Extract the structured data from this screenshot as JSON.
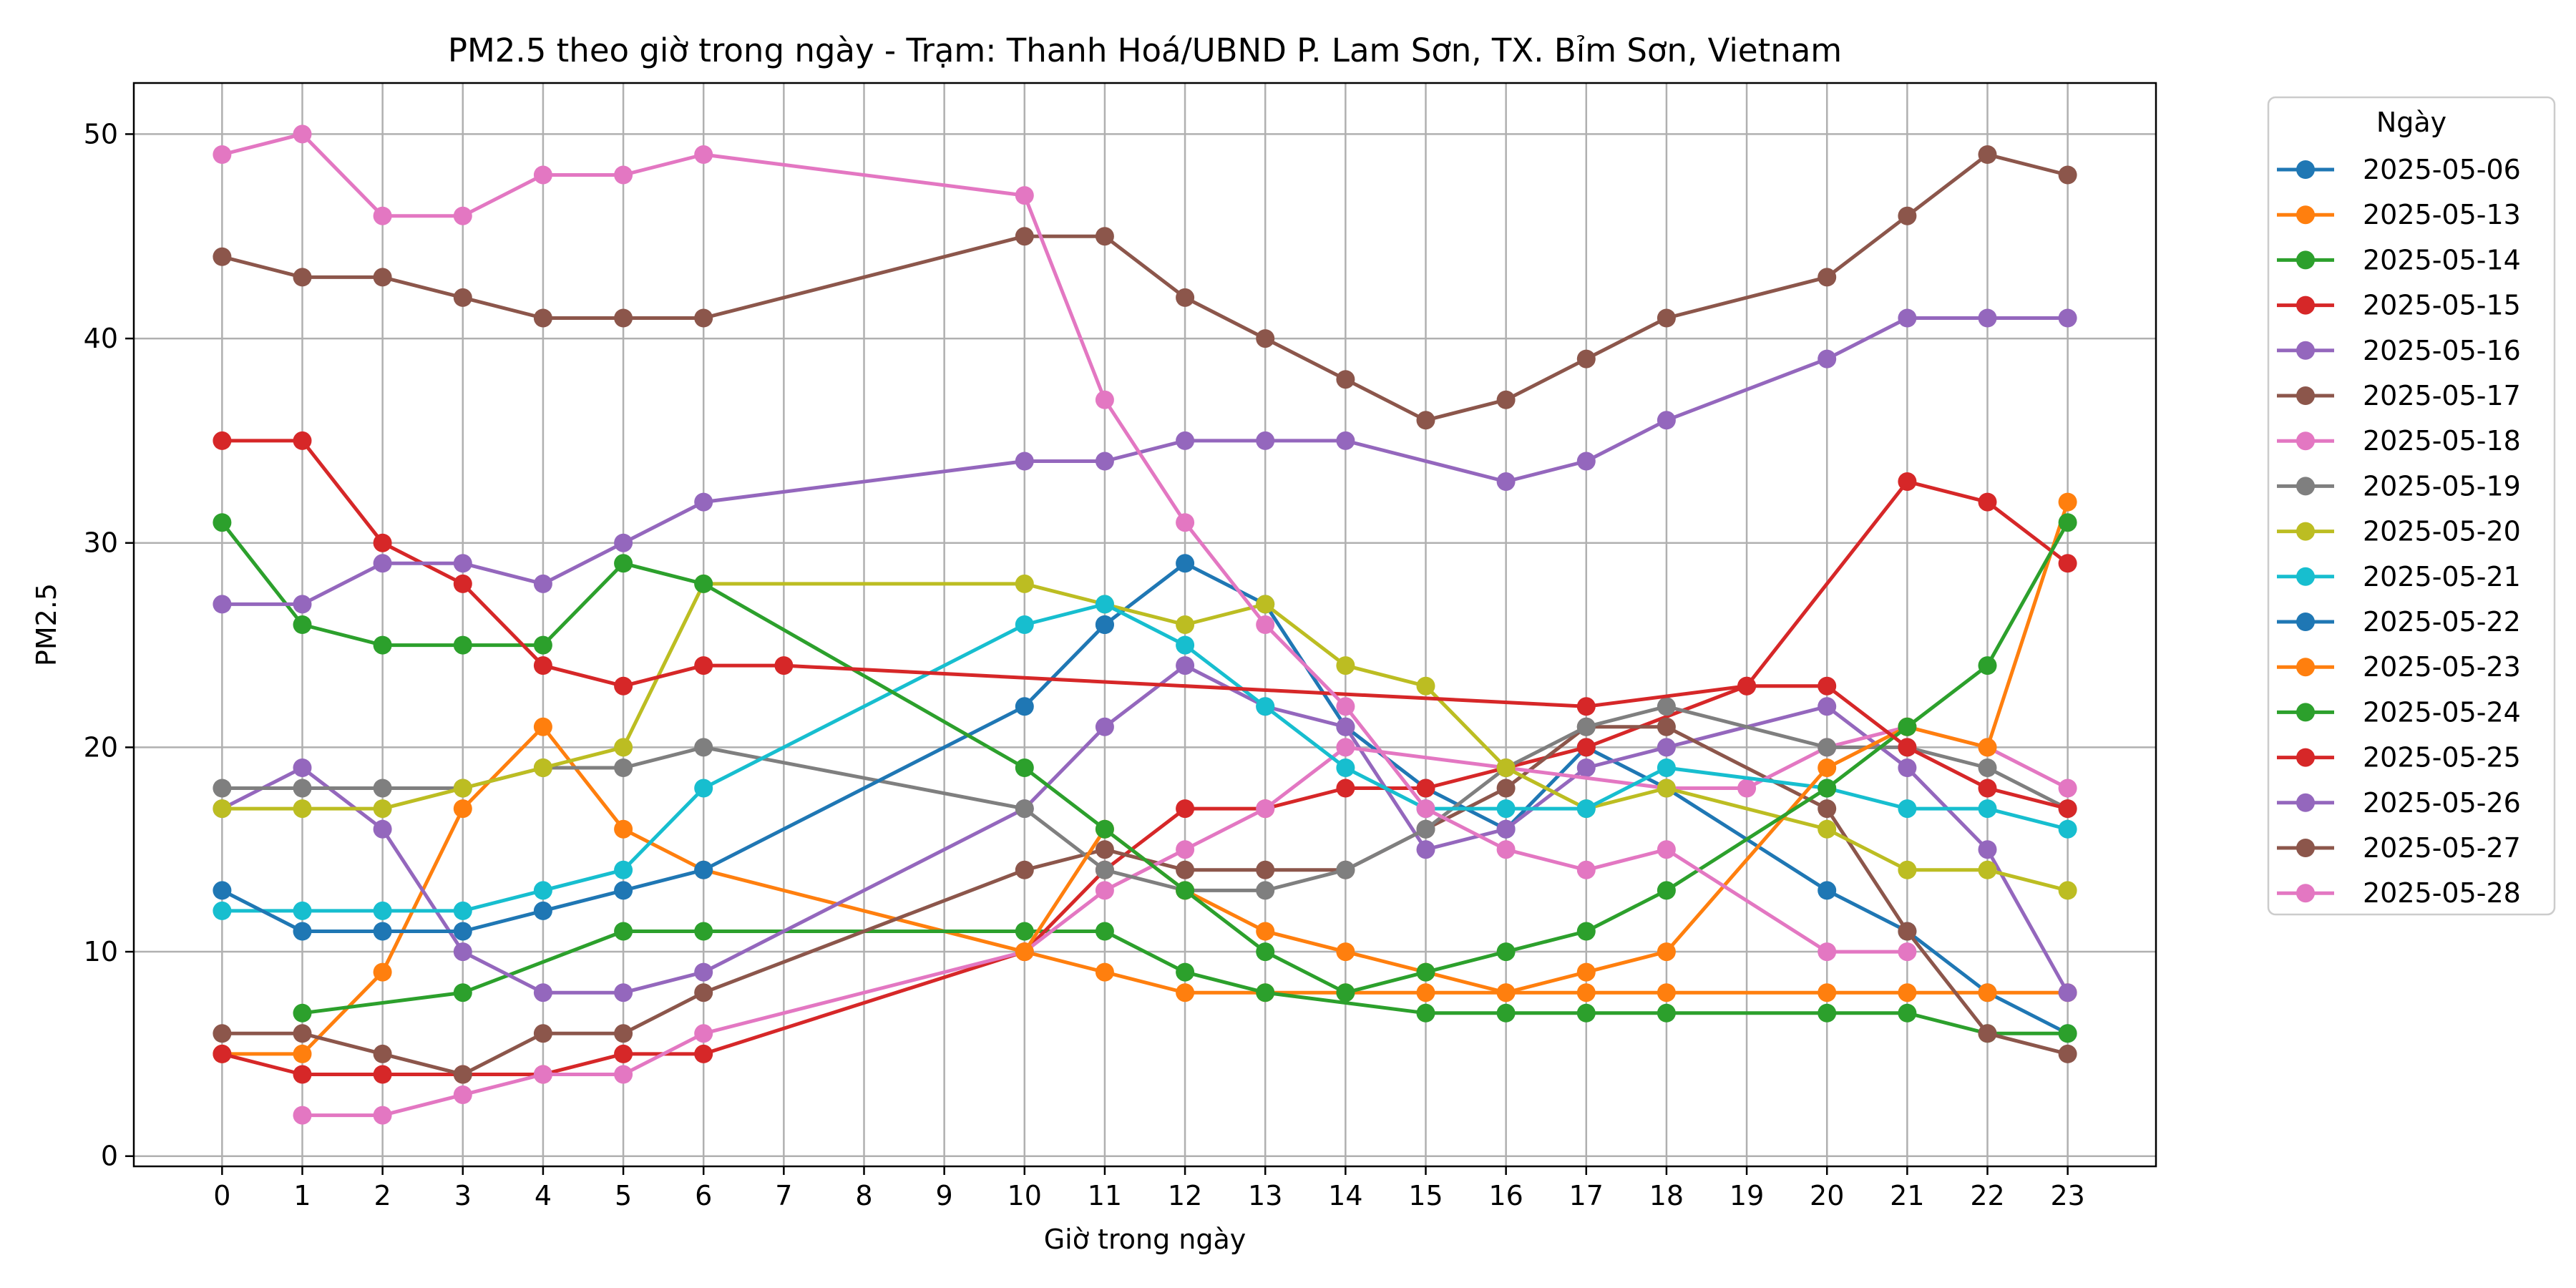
{
  "chart_data": {
    "type": "line",
    "title": "PM2.5 theo giờ trong ngày - Trạm: Thanh Hoá/UBND P. Lam Sơn, TX. Bỉm Sơn, Vietnam",
    "xlabel": "Giờ trong ngày",
    "ylabel": "PM2.5",
    "xlim": [
      -1.1,
      24.1
    ],
    "ylim": [
      -0.5,
      52.5
    ],
    "xticks": [
      0,
      1,
      2,
      3,
      4,
      5,
      6,
      7,
      8,
      9,
      10,
      11,
      12,
      13,
      14,
      15,
      16,
      17,
      18,
      19,
      20,
      21,
      22,
      23
    ],
    "yticks": [
      0,
      10,
      20,
      30,
      40,
      50
    ],
    "grid": true,
    "legend": {
      "title": "Ngày",
      "placement": "outside-right-top"
    },
    "series": [
      {
        "name": "2025-05-06",
        "color": "#1f77b4",
        "points": [
          [
            11,
            26
          ],
          [
            12,
            29
          ],
          [
            13,
            27
          ],
          [
            14,
            21
          ],
          [
            15,
            18
          ],
          [
            16,
            16
          ],
          [
            17,
            20
          ],
          [
            18,
            18
          ],
          [
            20,
            13
          ],
          [
            21,
            11
          ],
          [
            22,
            8
          ],
          [
            23,
            6
          ]
        ]
      },
      {
        "name": "2025-05-13",
        "color": "#ff7f0e",
        "points": [
          [
            0,
            5
          ],
          [
            1,
            5
          ],
          [
            2,
            9
          ],
          [
            3,
            17
          ],
          [
            4,
            21
          ],
          [
            5,
            16
          ],
          [
            6,
            14
          ],
          [
            10,
            10
          ],
          [
            11,
            9
          ],
          [
            12,
            8
          ],
          [
            13,
            8
          ],
          [
            14,
            8
          ],
          [
            15,
            8
          ],
          [
            16,
            8
          ],
          [
            17,
            8
          ],
          [
            18,
            8
          ],
          [
            20,
            8
          ],
          [
            21,
            8
          ],
          [
            22,
            8
          ],
          [
            23,
            8
          ]
        ]
      },
      {
        "name": "2025-05-14",
        "color": "#2ca02c",
        "points": [
          [
            1,
            7
          ],
          [
            3,
            8
          ],
          [
            5,
            11
          ],
          [
            6,
            11
          ],
          [
            10,
            11
          ],
          [
            11,
            11
          ],
          [
            12,
            9
          ],
          [
            13,
            8
          ],
          [
            15,
            7
          ],
          [
            16,
            7
          ],
          [
            17,
            7
          ],
          [
            18,
            7
          ],
          [
            20,
            7
          ],
          [
            21,
            7
          ],
          [
            22,
            6
          ],
          [
            23,
            6
          ]
        ]
      },
      {
        "name": "2025-05-15",
        "color": "#d62728",
        "points": [
          [
            0,
            5
          ],
          [
            1,
            4
          ],
          [
            2,
            4
          ],
          [
            3,
            4
          ],
          [
            4,
            4
          ],
          [
            5,
            5
          ],
          [
            6,
            5
          ],
          [
            10,
            10
          ],
          [
            11,
            14
          ],
          [
            12,
            17
          ],
          [
            13,
            17
          ],
          [
            14,
            18
          ],
          [
            15,
            18
          ],
          [
            17,
            20
          ],
          [
            19,
            23
          ],
          [
            21,
            33
          ],
          [
            22,
            32
          ],
          [
            23,
            29
          ]
        ]
      },
      {
        "name": "2025-05-16",
        "color": "#9467bd",
        "points": [
          [
            0,
            17
          ],
          [
            1,
            19
          ],
          [
            2,
            16
          ],
          [
            3,
            10
          ],
          [
            4,
            8
          ],
          [
            5,
            8
          ],
          [
            6,
            9
          ],
          [
            10,
            17
          ],
          [
            11,
            21
          ],
          [
            12,
            24
          ],
          [
            13,
            22
          ],
          [
            14,
            21
          ],
          [
            15,
            15
          ],
          [
            16,
            16
          ],
          [
            17,
            19
          ],
          [
            18,
            20
          ],
          [
            20,
            22
          ],
          [
            21,
            19
          ],
          [
            22,
            15
          ],
          [
            23,
            8
          ]
        ]
      },
      {
        "name": "2025-05-17",
        "color": "#8c564b",
        "points": [
          [
            0,
            6
          ],
          [
            1,
            6
          ],
          [
            2,
            5
          ],
          [
            3,
            4
          ],
          [
            4,
            6
          ],
          [
            5,
            6
          ],
          [
            6,
            8
          ],
          [
            10,
            14
          ],
          [
            11,
            15
          ],
          [
            12,
            14
          ],
          [
            13,
            14
          ],
          [
            14,
            14
          ],
          [
            15,
            16
          ],
          [
            16,
            18
          ],
          [
            17,
            21
          ],
          [
            18,
            21
          ],
          [
            20,
            17
          ],
          [
            21,
            11
          ],
          [
            22,
            6
          ],
          [
            23,
            5
          ]
        ]
      },
      {
        "name": "2025-05-18",
        "color": "#e377c2",
        "points": [
          [
            1,
            2
          ],
          [
            2,
            2
          ],
          [
            3,
            3
          ],
          [
            4,
            4
          ],
          [
            5,
            4
          ],
          [
            6,
            6
          ],
          [
            10,
            10
          ],
          [
            11,
            13
          ],
          [
            12,
            15
          ],
          [
            13,
            17
          ],
          [
            14,
            20
          ],
          [
            16,
            19
          ],
          [
            18,
            18
          ],
          [
            19,
            18
          ],
          [
            20,
            20
          ],
          [
            21,
            21
          ],
          [
            22,
            20
          ],
          [
            23,
            18
          ]
        ]
      },
      {
        "name": "2025-05-19",
        "color": "#7f7f7f",
        "points": [
          [
            0,
            18
          ],
          [
            1,
            18
          ],
          [
            2,
            18
          ],
          [
            3,
            18
          ],
          [
            4,
            19
          ],
          [
            5,
            19
          ],
          [
            6,
            20
          ],
          [
            10,
            17
          ],
          [
            11,
            14
          ],
          [
            12,
            13
          ],
          [
            13,
            13
          ],
          [
            14,
            14
          ],
          [
            15,
            16
          ],
          [
            16,
            19
          ],
          [
            17,
            21
          ],
          [
            18,
            22
          ],
          [
            20,
            20
          ],
          [
            21,
            20
          ],
          [
            22,
            19
          ],
          [
            23,
            17
          ]
        ]
      },
      {
        "name": "2025-05-20",
        "color": "#bcbd22",
        "points": [
          [
            0,
            17
          ],
          [
            1,
            17
          ],
          [
            2,
            17
          ],
          [
            3,
            18
          ],
          [
            4,
            19
          ],
          [
            5,
            20
          ],
          [
            6,
            28
          ],
          [
            10,
            28
          ],
          [
            11,
            27
          ],
          [
            12,
            26
          ],
          [
            13,
            27
          ],
          [
            14,
            24
          ],
          [
            15,
            23
          ],
          [
            16,
            19
          ],
          [
            17,
            17
          ],
          [
            18,
            18
          ],
          [
            20,
            16
          ],
          [
            21,
            14
          ],
          [
            22,
            14
          ],
          [
            23,
            13
          ]
        ]
      },
      {
        "name": "2025-05-21",
        "color": "#17becf",
        "points": [
          [
            0,
            12
          ],
          [
            1,
            12
          ],
          [
            2,
            12
          ],
          [
            3,
            12
          ],
          [
            4,
            13
          ],
          [
            5,
            14
          ],
          [
            6,
            18
          ],
          [
            10,
            26
          ],
          [
            11,
            27
          ],
          [
            12,
            25
          ],
          [
            13,
            22
          ],
          [
            14,
            19
          ],
          [
            15,
            17
          ],
          [
            16,
            17
          ],
          [
            17,
            17
          ],
          [
            18,
            19
          ],
          [
            20,
            18
          ],
          [
            21,
            17
          ],
          [
            22,
            17
          ],
          [
            23,
            16
          ]
        ]
      },
      {
        "name": "2025-05-22",
        "color": "#1f77b4",
        "points": [
          [
            0,
            13
          ],
          [
            1,
            11
          ],
          [
            2,
            11
          ],
          [
            3,
            11
          ],
          [
            4,
            12
          ],
          [
            5,
            13
          ],
          [
            6,
            14
          ],
          [
            10,
            22
          ],
          [
            11,
            26
          ]
        ]
      },
      {
        "name": "2025-05-23",
        "color": "#ff7f0e",
        "points": [
          [
            10,
            10
          ],
          [
            11,
            16
          ],
          [
            12,
            13
          ],
          [
            13,
            11
          ],
          [
            14,
            10
          ],
          [
            15,
            9
          ],
          [
            16,
            8
          ],
          [
            17,
            9
          ],
          [
            18,
            10
          ],
          [
            20,
            19
          ],
          [
            21,
            21
          ],
          [
            22,
            20
          ],
          [
            23,
            32
          ]
        ]
      },
      {
        "name": "2025-05-24",
        "color": "#2ca02c",
        "points": [
          [
            0,
            31
          ],
          [
            1,
            26
          ],
          [
            2,
            25
          ],
          [
            3,
            25
          ],
          [
            4,
            25
          ],
          [
            5,
            29
          ],
          [
            6,
            28
          ],
          [
            10,
            19
          ],
          [
            11,
            16
          ],
          [
            12,
            13
          ],
          [
            13,
            10
          ],
          [
            14,
            8
          ],
          [
            15,
            9
          ],
          [
            16,
            10
          ],
          [
            17,
            11
          ],
          [
            18,
            13
          ],
          [
            20,
            18
          ],
          [
            21,
            21
          ],
          [
            22,
            24
          ],
          [
            23,
            31
          ]
        ]
      },
      {
        "name": "2025-05-25",
        "color": "#d62728",
        "points": [
          [
            0,
            35
          ],
          [
            1,
            35
          ],
          [
            2,
            30
          ],
          [
            3,
            28
          ],
          [
            4,
            24
          ],
          [
            5,
            23
          ],
          [
            6,
            24
          ],
          [
            7,
            24
          ],
          [
            17,
            22
          ],
          [
            19,
            23
          ],
          [
            20,
            23
          ],
          [
            21,
            20
          ],
          [
            22,
            18
          ],
          [
            23,
            17
          ]
        ]
      },
      {
        "name": "2025-05-26",
        "color": "#9467bd",
        "points": [
          [
            0,
            27
          ],
          [
            1,
            27
          ],
          [
            2,
            29
          ],
          [
            3,
            29
          ],
          [
            4,
            28
          ],
          [
            5,
            30
          ],
          [
            6,
            32
          ],
          [
            10,
            34
          ],
          [
            11,
            34
          ],
          [
            12,
            35
          ],
          [
            13,
            35
          ],
          [
            14,
            35
          ],
          [
            16,
            33
          ],
          [
            17,
            34
          ],
          [
            18,
            36
          ],
          [
            20,
            39
          ],
          [
            21,
            41
          ],
          [
            22,
            41
          ],
          [
            23,
            41
          ]
        ]
      },
      {
        "name": "2025-05-27",
        "color": "#8c564b",
        "points": [
          [
            0,
            44
          ],
          [
            1,
            43
          ],
          [
            2,
            43
          ],
          [
            3,
            42
          ],
          [
            4,
            41
          ],
          [
            5,
            41
          ],
          [
            6,
            41
          ],
          [
            10,
            45
          ],
          [
            11,
            45
          ],
          [
            12,
            42
          ],
          [
            13,
            40
          ],
          [
            14,
            38
          ],
          [
            15,
            36
          ],
          [
            16,
            37
          ],
          [
            17,
            39
          ],
          [
            18,
            41
          ],
          [
            20,
            43
          ],
          [
            21,
            46
          ],
          [
            22,
            49
          ],
          [
            23,
            48
          ]
        ]
      },
      {
        "name": "2025-05-28",
        "color": "#e377c2",
        "points": [
          [
            0,
            49
          ],
          [
            1,
            50
          ],
          [
            2,
            46
          ],
          [
            3,
            46
          ],
          [
            4,
            48
          ],
          [
            5,
            48
          ],
          [
            6,
            49
          ],
          [
            10,
            47
          ],
          [
            11,
            37
          ],
          [
            12,
            31
          ],
          [
            13,
            26
          ],
          [
            14,
            22
          ],
          [
            15,
            17
          ],
          [
            16,
            15
          ],
          [
            17,
            14
          ],
          [
            18,
            15
          ],
          [
            20,
            10
          ],
          [
            21,
            10
          ]
        ]
      }
    ]
  }
}
